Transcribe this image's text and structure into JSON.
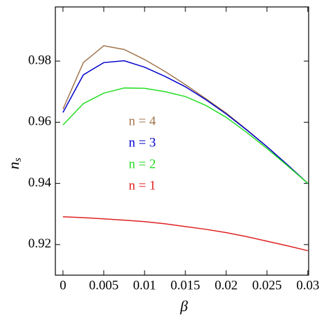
{
  "chart_data": {
    "type": "line",
    "xlabel": "β",
    "ylabel": "n",
    "ylabel_sub": "s",
    "x": [
      0,
      0.0025,
      0.005,
      0.0075,
      0.01,
      0.0125,
      0.015,
      0.0175,
      0.02,
      0.0225,
      0.025,
      0.0275,
      0.03
    ],
    "series": [
      {
        "name": "n = 4",
        "color": "#a0744c",
        "values": [
          0.9643,
          0.9795,
          0.985,
          0.9838,
          0.9805,
          0.9766,
          0.9723,
          0.9677,
          0.963,
          0.9576,
          0.952,
          0.9461,
          0.94
        ]
      },
      {
        "name": "n = 3",
        "color": "#0000cc",
        "values": [
          0.9632,
          0.9755,
          0.9795,
          0.9801,
          0.978,
          0.975,
          0.9716,
          0.9674,
          0.9627,
          0.9575,
          0.952,
          0.9461,
          0.94
        ]
      },
      {
        "name": "n = 2",
        "color": "#22dd22",
        "values": [
          0.9591,
          0.9661,
          0.9695,
          0.9712,
          0.9711,
          0.97,
          0.9684,
          0.9655,
          0.9616,
          0.9567,
          0.9514,
          0.9458,
          0.94
        ]
      },
      {
        "name": "n = 1",
        "color": "#e02020",
        "values": [
          0.9291,
          0.9288,
          0.9284,
          0.928,
          0.9275,
          0.9268,
          0.9259,
          0.925,
          0.9239,
          0.9226,
          0.9211,
          0.9196,
          0.918
        ]
      }
    ],
    "xlim": [
      -0.00093,
      0.0301
    ],
    "ylim": [
      0.91,
      0.9977
    ],
    "xticks": [
      0,
      0.005,
      0.01,
      0.015,
      0.02,
      0.025,
      0.03
    ],
    "yticks": [
      0.92,
      0.94,
      0.96,
      0.98
    ],
    "grid": false
  }
}
